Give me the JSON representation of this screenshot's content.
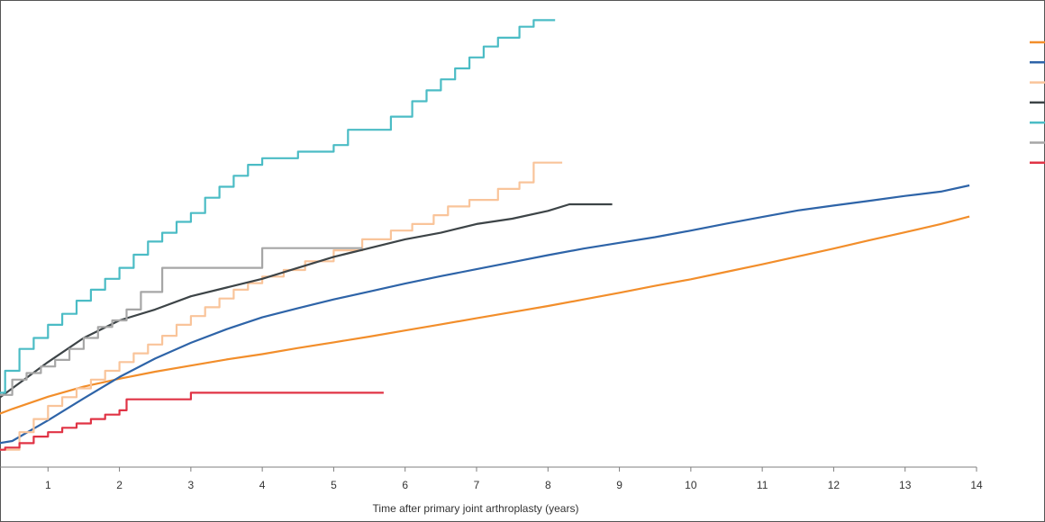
{
  "chart_data": {
    "type": "line",
    "title": "",
    "xlabel": "Time after primary joint arthroplasty (years)",
    "ylabel": "",
    "xlim": [
      0,
      14
    ],
    "ylim": [
      0,
      100
    ],
    "x_ticks": [
      1,
      2,
      3,
      4,
      5,
      6,
      7,
      8,
      9,
      10,
      11,
      12,
      13,
      14
    ],
    "grid": false,
    "legend_position": "right",
    "series": [
      {
        "color": "#F28E2B",
        "interpolation": "linear",
        "x": [
          0,
          0.5,
          1,
          1.5,
          2,
          2.5,
          3,
          3.5,
          4,
          4.5,
          5,
          5.5,
          6,
          6.5,
          7,
          7.5,
          8,
          8.5,
          9,
          9.5,
          10,
          10.5,
          11,
          11.5,
          12,
          12.5,
          13,
          13.5,
          13.9
        ],
        "y": [
          7.7,
          10.8,
          13.6,
          15.9,
          17.7,
          19.3,
          20.7,
          22.1,
          23.3,
          24.7,
          26.0,
          27.3,
          28.7,
          30.1,
          31.5,
          32.9,
          34.3,
          35.8,
          37.3,
          38.9,
          40.4,
          42.1,
          43.8,
          45.6,
          47.4,
          49.3,
          51.1,
          53.0,
          54.7
        ]
      },
      {
        "color": "#2E64A8",
        "interpolation": "linear",
        "x": [
          0.05,
          0.5,
          1,
          1.5,
          2,
          2.5,
          3,
          3.5,
          4,
          4.5,
          5,
          5.5,
          6,
          6.5,
          7,
          7.5,
          8,
          8.5,
          9,
          9.5,
          10,
          10.5,
          11,
          11.5,
          12,
          12.5,
          13,
          13.5,
          13.9
        ],
        "y": [
          2.3,
          3.5,
          8.2,
          13.2,
          18.1,
          22.3,
          25.9,
          29.0,
          31.7,
          33.8,
          35.8,
          37.6,
          39.4,
          41.1,
          42.7,
          44.3,
          45.9,
          47.4,
          48.7,
          50.0,
          51.5,
          53.1,
          54.6,
          56.1,
          57.2,
          58.3,
          59.4,
          60.4,
          61.8
        ]
      },
      {
        "color": "#F9C49A",
        "interpolation": "step",
        "x": [
          0,
          0.3,
          0.6,
          0.8,
          1.0,
          1.2,
          1.4,
          1.6,
          1.8,
          2.0,
          2.2,
          2.4,
          2.6,
          2.8,
          3.0,
          3.2,
          3.4,
          3.6,
          3.8,
          4.0,
          4.3,
          4.6,
          5.0,
          5.4,
          5.8,
          6.1,
          6.4,
          6.6,
          6.9,
          7.3,
          7.6,
          7.8,
          8.2
        ],
        "y": [
          0.0,
          1.5,
          5.5,
          8.5,
          11.5,
          13.5,
          15.5,
          17.5,
          19.5,
          21.5,
          23.5,
          25.5,
          27.5,
          30.0,
          32.0,
          34.0,
          36.0,
          38.0,
          39.5,
          41.0,
          42.5,
          44.5,
          47.0,
          49.5,
          51.5,
          53.0,
          55.0,
          57.0,
          58.5,
          61.0,
          62.5,
          67.0,
          67.0
        ]
      },
      {
        "color": "#3D4447",
        "interpolation": "linear",
        "x": [
          0,
          0.5,
          1,
          1.5,
          2,
          2.5,
          3,
          3.5,
          4,
          4.5,
          5,
          5.5,
          6,
          6.5,
          7,
          7.5,
          8,
          8.3,
          8.9
        ],
        "y": [
          9.5,
          15.5,
          21.5,
          27.0,
          31.0,
          33.5,
          36.5,
          38.5,
          40.5,
          43.0,
          45.5,
          47.5,
          49.5,
          51.0,
          53.0,
          54.2,
          56.0,
          57.5,
          57.5
        ]
      },
      {
        "color": "#4BBCC5",
        "interpolation": "step",
        "x": [
          0,
          0.2,
          0.4,
          0.6,
          0.8,
          1.0,
          1.2,
          1.4,
          1.6,
          1.8,
          2.0,
          2.2,
          2.4,
          2.6,
          2.8,
          3.0,
          3.2,
          3.4,
          3.6,
          3.8,
          4.0,
          4.5,
          5.0,
          5.2,
          5.8,
          6.1,
          6.3,
          6.5,
          6.7,
          6.9,
          7.1,
          7.3,
          7.6,
          7.8,
          8.1
        ],
        "y": [
          9.5,
          14.5,
          19.5,
          24.5,
          27.0,
          30.0,
          32.5,
          35.5,
          38.0,
          40.5,
          43.0,
          46.0,
          49.0,
          51.0,
          53.5,
          55.5,
          59.0,
          61.5,
          64.0,
          66.5,
          68.0,
          69.5,
          71.0,
          74.5,
          77.5,
          81.0,
          83.5,
          86.0,
          88.5,
          91.0,
          93.5,
          95.5,
          98.0,
          99.5,
          99.5
        ]
      },
      {
        "color": "#A6A6A6",
        "interpolation": "step",
        "x": [
          0,
          0.3,
          0.5,
          0.7,
          0.9,
          1.1,
          1.3,
          1.5,
          1.7,
          1.9,
          2.1,
          2.3,
          2.6,
          3.0,
          3.5,
          4.0,
          4.2,
          5.0,
          5.4
        ],
        "y": [
          0.0,
          14.0,
          17.5,
          19.0,
          20.5,
          22.0,
          24.5,
          27.0,
          29.5,
          31.0,
          33.5,
          37.5,
          43.0,
          43.0,
          43.0,
          47.5,
          47.5,
          47.5,
          47.5
        ]
      },
      {
        "color": "#E03345",
        "interpolation": "step",
        "x": [
          0,
          0.2,
          0.4,
          0.6,
          0.8,
          1.0,
          1.2,
          1.4,
          1.6,
          1.8,
          2.0,
          2.1,
          3.0,
          5.7
        ],
        "y": [
          1.5,
          1.5,
          2.0,
          3.0,
          4.5,
          5.5,
          6.5,
          7.5,
          8.5,
          9.5,
          10.5,
          13.0,
          14.5,
          14.5
        ]
      }
    ]
  }
}
